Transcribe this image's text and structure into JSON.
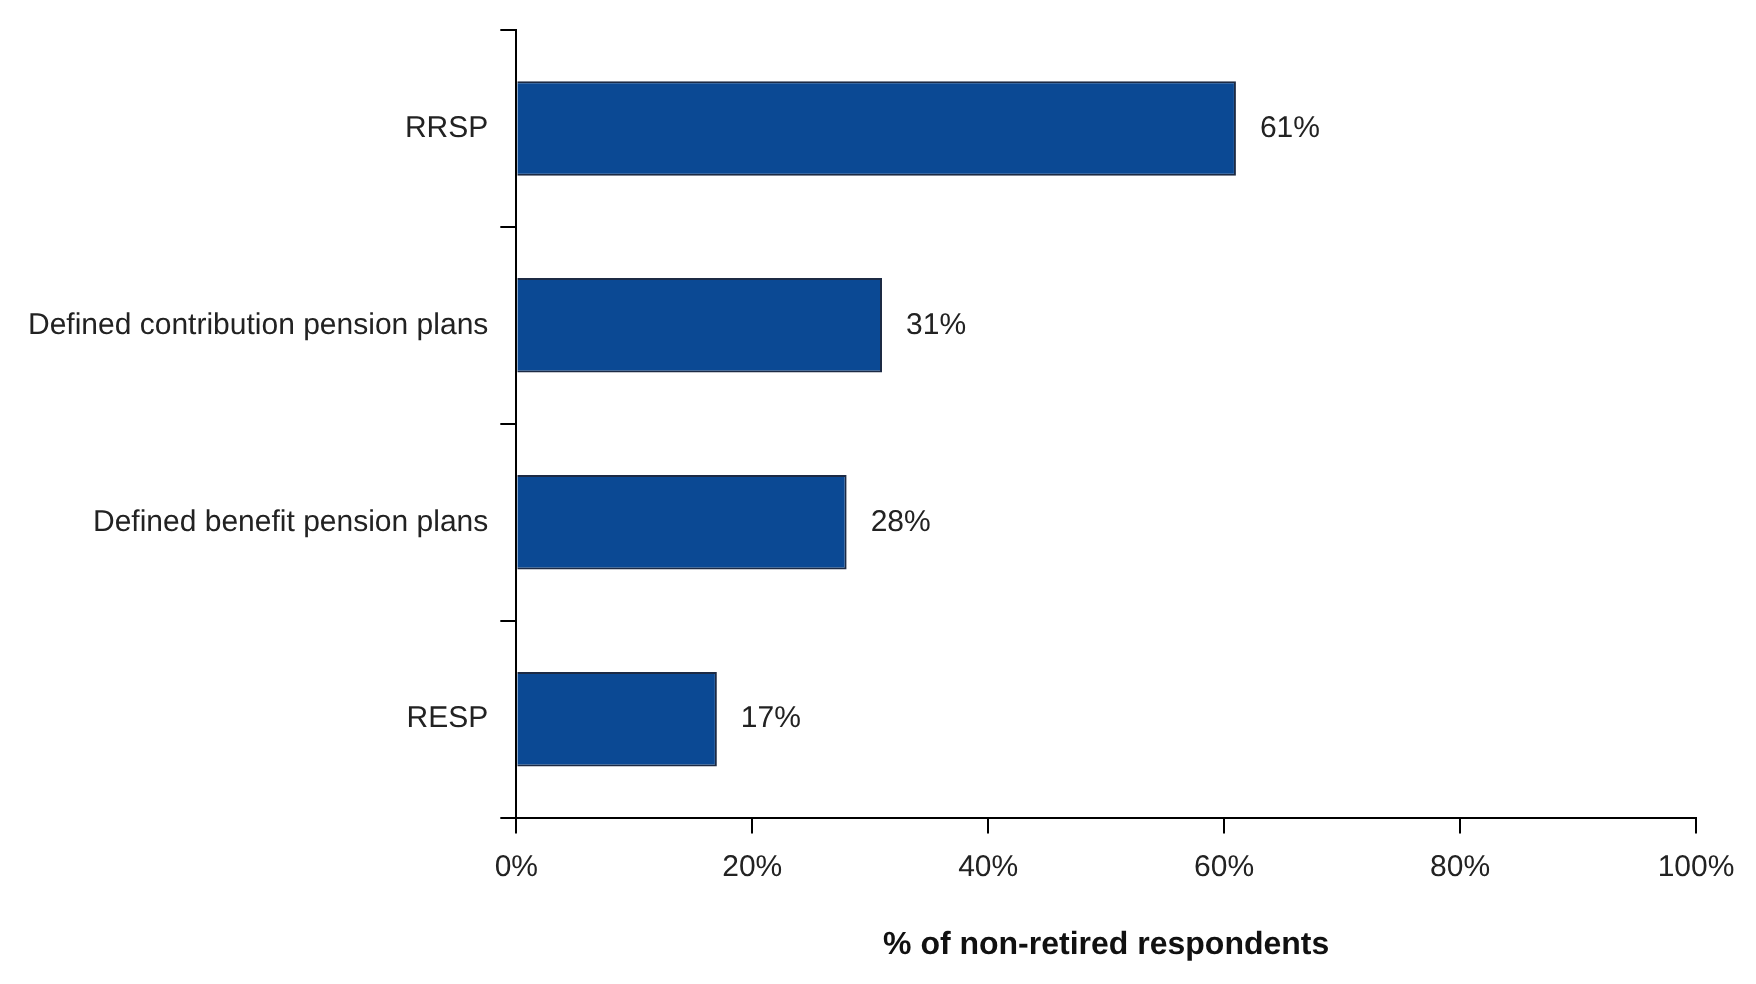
{
  "chart_data": {
    "type": "bar",
    "orientation": "horizontal",
    "xlabel": "% of non-retired respondents",
    "categories": [
      "RRSP",
      "Defined contribution pension plans",
      "Defined benefit pension plans",
      "RESP"
    ],
    "values": [
      61,
      31,
      28,
      17
    ],
    "color": "#0b4994",
    "value_labels": [
      "61%",
      "31%",
      "28%",
      "17%"
    ],
    "xlim": [
      0,
      100
    ],
    "xticks": [
      {
        "value": 0,
        "label": "0%"
      },
      {
        "value": 20,
        "label": "20%"
      },
      {
        "value": 40,
        "label": "40%"
      },
      {
        "value": 60,
        "label": "60%"
      },
      {
        "value": 80,
        "label": "80%"
      },
      {
        "value": 100,
        "label": "100%"
      }
    ],
    "grid": false,
    "legend": false
  }
}
